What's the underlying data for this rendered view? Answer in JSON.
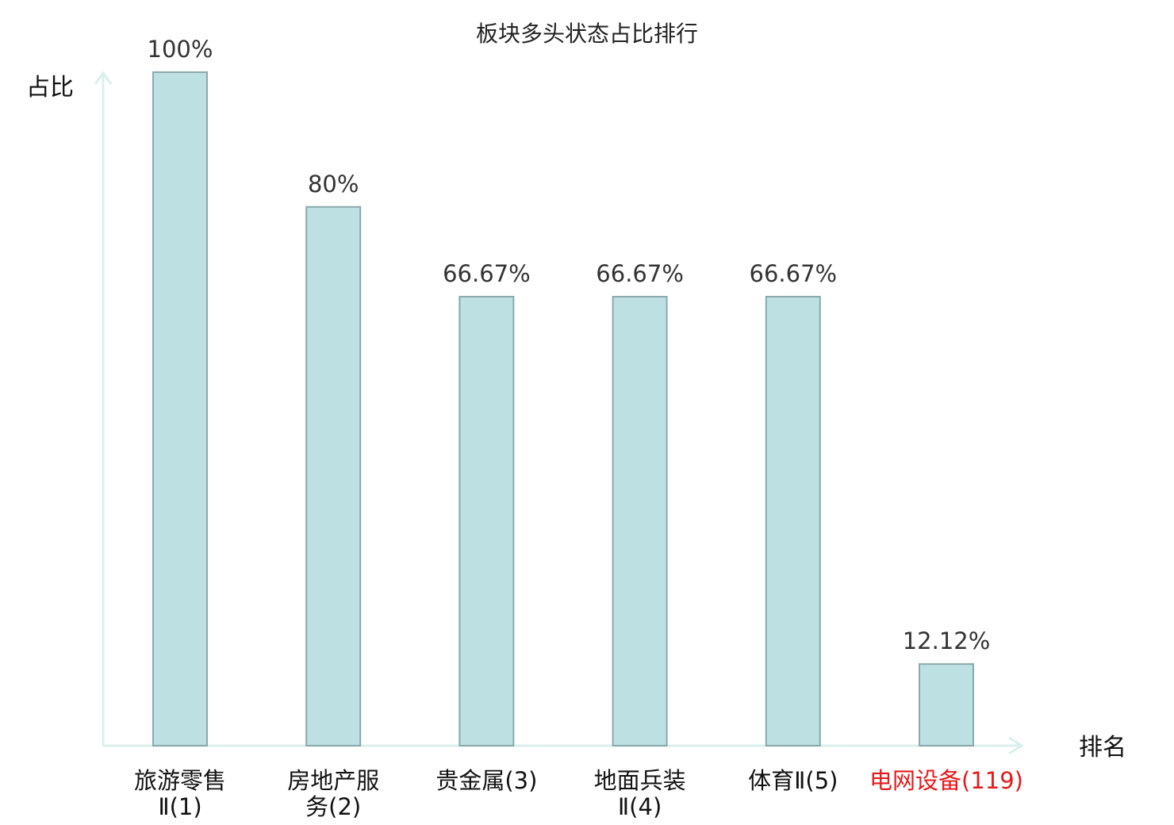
{
  "chart_data": {
    "type": "bar",
    "title": "板块多头状态占比排行",
    "ylabel": "占比",
    "xlabel": "排名",
    "ylim": [
      0,
      100
    ],
    "grid": false,
    "categories": [
      {
        "lines": [
          "旅游零售",
          "Ⅱ(1)"
        ],
        "highlight": false
      },
      {
        "lines": [
          "房地产服",
          "务(2)"
        ],
        "highlight": false
      },
      {
        "lines": [
          "贵金属(3)"
        ],
        "highlight": false
      },
      {
        "lines": [
          "地面兵装",
          "Ⅱ(4)"
        ],
        "highlight": false
      },
      {
        "lines": [
          "体育Ⅱ(5)"
        ],
        "highlight": false
      },
      {
        "lines": [
          "电网设备(119)"
        ],
        "highlight": true
      }
    ],
    "values": [
      100,
      80,
      66.67,
      66.67,
      66.67,
      12.12
    ],
    "value_labels": [
      "100%",
      "80%",
      "66.67%",
      "66.67%",
      "66.67%",
      "12.12%"
    ]
  },
  "colors": {
    "bar_fill": "#bde0e3",
    "bar_stroke": "#8aa9ab",
    "axis": "#d9efec",
    "highlight": "#e41a1c",
    "text": "#111111"
  }
}
